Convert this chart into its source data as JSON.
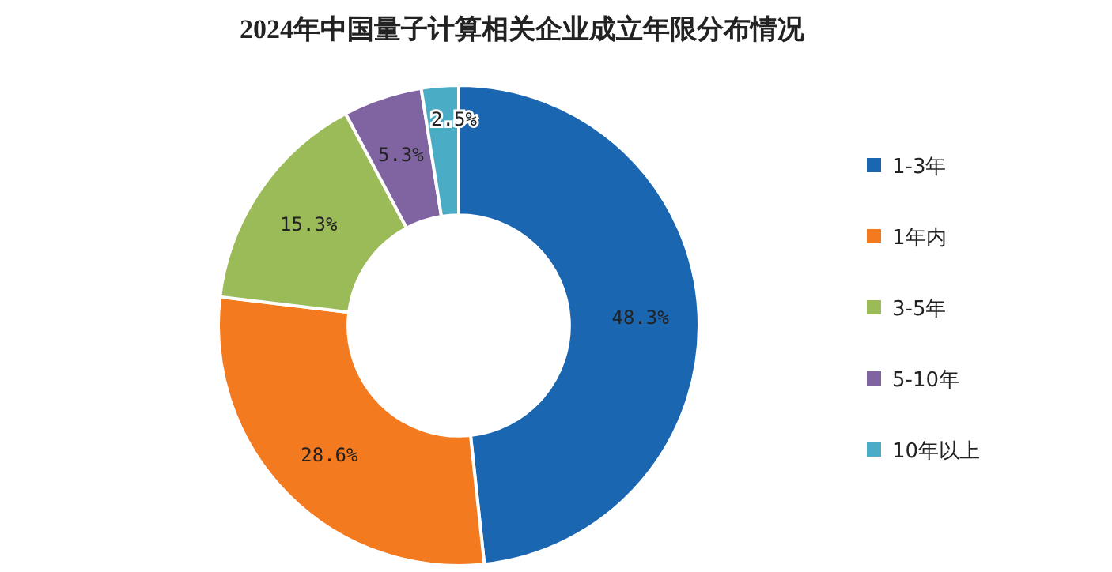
{
  "chart_data": {
    "type": "donut",
    "title": "2024年中国量子计算相关企业成立年限分布情况",
    "categories": [
      "1-3年",
      "1年内",
      "3-5年",
      "5-10年",
      "10年以上"
    ],
    "values": [
      48.3,
      28.6,
      15.3,
      5.3,
      2.5
    ],
    "colors": [
      "#1a66b0",
      "#f47a1f",
      "#9bbb59",
      "#8064a2",
      "#4bacc6"
    ],
    "value_labels": [
      "48.3%",
      "28.6%",
      "15.3%",
      "5.3%",
      "2.5%"
    ],
    "legend": "right"
  }
}
